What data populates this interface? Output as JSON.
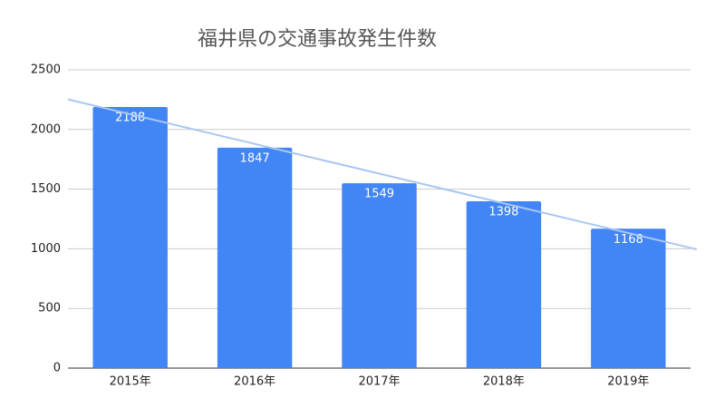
{
  "chart_data": {
    "type": "bar",
    "title": "福井県の交通事故発生件数",
    "categories": [
      "2015年",
      "2016年",
      "2017年",
      "2018年",
      "2019年"
    ],
    "values": [
      2188,
      1847,
      1549,
      1398,
      1168
    ],
    "color": "#4285f4",
    "ylim": [
      0,
      2500
    ],
    "yticks": [
      0,
      500,
      1000,
      1500,
      2000,
      2500
    ],
    "grid": true,
    "trendline": true,
    "trendline_color": "#a9c7f2"
  }
}
